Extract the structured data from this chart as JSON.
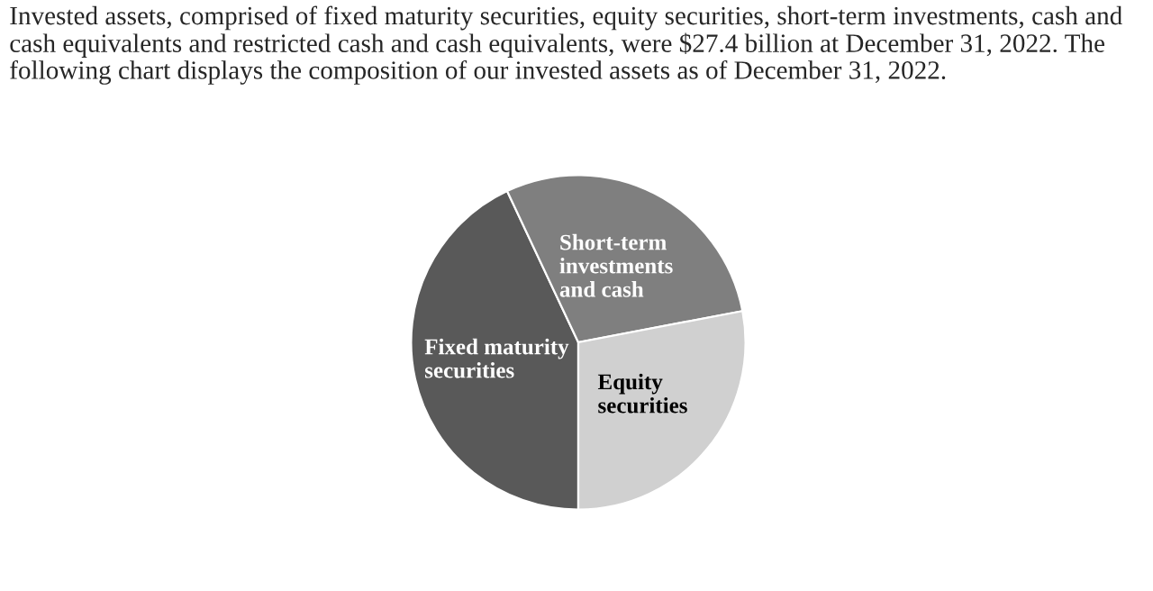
{
  "chart_data": {
    "type": "pie",
    "title": "Invested assets, comprised of fixed maturity securities, equity securities, short-term investments, cash and cash equivalents and restricted cash and cash equivalents, were $27.4 billion at December 31, 2022. The following chart displays the composition of our invested assets as of December 31, 2022.",
    "categories": [
      "Fixed maturity\nsecurities",
      "Short-term\ninvestments\nand cash",
      "Equity\nsecurities"
    ],
    "values": [
      43,
      29,
      28
    ],
    "colors": [
      "#595959",
      "#7f7f7f",
      "#d0d0d0"
    ]
  }
}
